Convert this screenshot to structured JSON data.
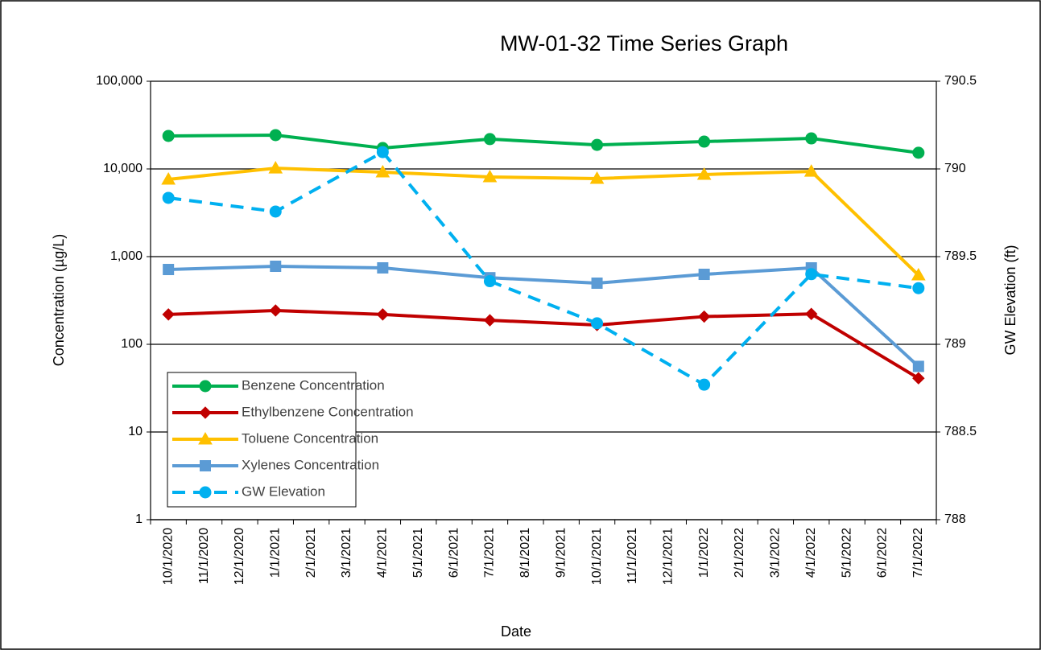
{
  "chart_data": {
    "type": "line",
    "title": "MW-01-32 Time Series Graph",
    "x_label": "Date",
    "y_label": "Concentration (µg/L)",
    "y2_label": "GW Elevation (ft)",
    "categories": [
      "10/1/2020",
      "11/1/2020",
      "12/1/2020",
      "1/1/2021",
      "2/1/2021",
      "3/1/2021",
      "4/1/2021",
      "5/1/2021",
      "6/1/2021",
      "7/1/2021",
      "8/1/2021",
      "9/1/2021",
      "10/1/2021",
      "11/1/2021",
      "12/1/2021",
      "1/1/2022",
      "2/1/2022",
      "3/1/2022",
      "4/1/2022",
      "5/1/2022",
      "6/1/2022",
      "7/1/2022"
    ],
    "yscale": "log",
    "ylim": [
      1,
      100000
    ],
    "yticks": [
      1,
      10,
      {
        "value": 100,
        "label": "100"
      },
      {
        "value": 1000,
        "label": "1,000"
      },
      {
        "value": 10000,
        "label": "10,000"
      },
      {
        "value": 100000,
        "label": "100,000"
      }
    ],
    "y2lim": [
      788,
      790.5
    ],
    "y2ticks": [
      788,
      788.5,
      789,
      789.5,
      790,
      790.5
    ],
    "grid": true,
    "legend": "lower left",
    "series": [
      {
        "name": "Benzene Concentration",
        "color": "#00b050",
        "marker": "circle",
        "x": [
          "10/1/2020",
          "1/1/2021",
          "4/1/2021",
          "7/1/2021",
          "10/1/2021",
          "1/1/2022",
          "4/1/2022",
          "7/1/2022"
        ],
        "values": [
          23800,
          24300,
          17300,
          21900,
          18800,
          20500,
          22300,
          15300
        ]
      },
      {
        "name": "Ethylbenzene Concentration",
        "color": "#c00000",
        "marker": "diamond",
        "x": [
          "10/1/2020",
          "1/1/2021",
          "4/1/2021",
          "7/1/2021",
          "10/1/2021",
          "1/1/2022",
          "4/1/2022",
          "7/1/2022"
        ],
        "values": [
          219,
          243,
          219,
          188,
          166,
          207,
          222,
          41
        ]
      },
      {
        "name": "Toluene Concentration",
        "color": "#ffc000",
        "marker": "triangle",
        "x": [
          "10/1/2020",
          "1/1/2021",
          "4/1/2021",
          "7/1/2021",
          "10/1/2021",
          "1/1/2022",
          "4/1/2022",
          "7/1/2022"
        ],
        "values": [
          7600,
          10200,
          9200,
          8100,
          7760,
          8630,
          9370,
          615
        ]
      },
      {
        "name": "Xylenes Concentration",
        "color": "#5b9bd5",
        "marker": "square",
        "x": [
          "10/1/2020",
          "1/1/2021",
          "4/1/2021",
          "7/1/2021",
          "10/1/2021",
          "1/1/2022",
          "4/1/2022",
          "7/1/2022"
        ],
        "values": [
          713,
          776,
          744,
          575,
          498,
          628,
          744,
          56
        ]
      },
      {
        "name": "GW Elevation",
        "color": "#00b0f0",
        "marker": "circle",
        "dash": true,
        "axis": "y2",
        "x": [
          "10/1/2020",
          "1/1/2021",
          "4/1/2021",
          "7/1/2021",
          "10/1/2021",
          "1/1/2022",
          "4/1/2022",
          "7/1/2022"
        ],
        "values": [
          789.835,
          789.757,
          790.096,
          789.36,
          789.12,
          788.77,
          789.4,
          789.32
        ]
      }
    ]
  }
}
